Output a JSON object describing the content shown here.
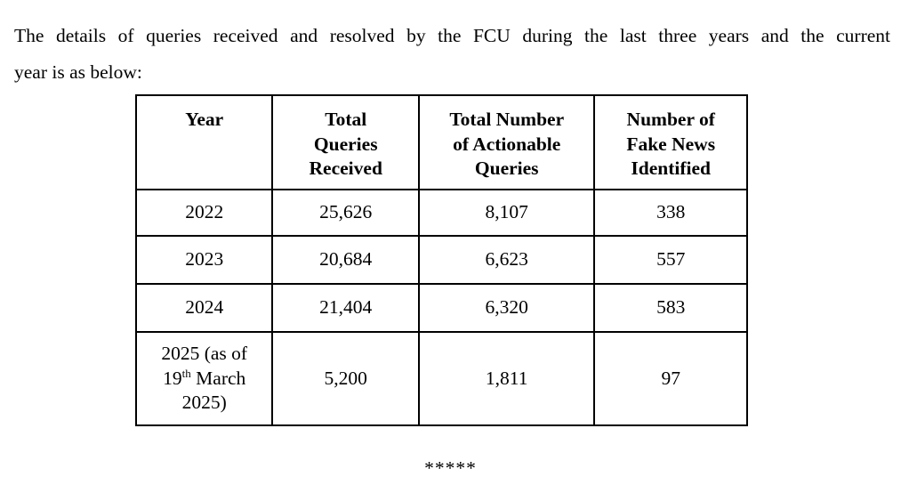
{
  "intro": {
    "line1": "The details of queries received and resolved by the FCU during the last three years and the current",
    "line2": "year is as below:"
  },
  "table": {
    "headers": [
      [
        "Year"
      ],
      [
        "Total",
        "Queries",
        "Received"
      ],
      [
        "Total Number",
        "of Actionable",
        "Queries"
      ],
      [
        "Number of",
        "Fake News",
        "Identified"
      ]
    ],
    "rows": [
      {
        "year": "2022",
        "total_queries": "25,626",
        "actionable": "8,107",
        "fake_news": "338"
      },
      {
        "year": "2023",
        "total_queries": "20,684",
        "actionable": "6,623",
        "fake_news": "557"
      },
      {
        "year": "2024",
        "total_queries": "21,404",
        "actionable": "6,320",
        "fake_news": "583"
      },
      {
        "year_line1": "2025 (as of",
        "year_line2_num": "19",
        "year_line2_sup": "th",
        "year_line2_rest": " March",
        "year_line3": "2025)",
        "total_queries": "5,200",
        "actionable": "1,811",
        "fake_news": "97"
      }
    ]
  },
  "footer": {
    "stars": "*****"
  }
}
